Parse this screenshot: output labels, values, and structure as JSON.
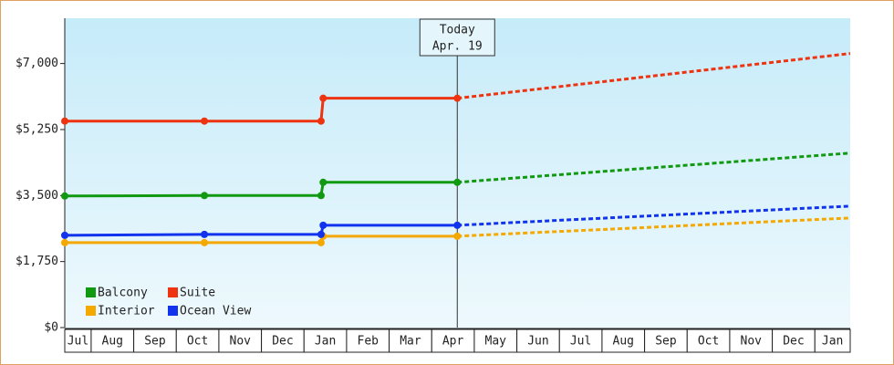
{
  "chart_data": {
    "type": "line",
    "ylim": [
      0,
      8200
    ],
    "yticks": [
      {
        "value": 0,
        "label": "$0"
      },
      {
        "value": 1750,
        "label": "$1,750"
      },
      {
        "value": 3500,
        "label": "$3,500"
      },
      {
        "value": 5250,
        "label": "$5,250"
      },
      {
        "value": 7000,
        "label": "$7,000"
      }
    ],
    "xlim": [
      0.38,
      18.83
    ],
    "categories": [
      "Jul",
      "Aug",
      "Sep",
      "Oct",
      "Nov",
      "Dec",
      "Jan",
      "Feb",
      "Mar",
      "Apr",
      "May",
      "Jun",
      "Jul",
      "Aug",
      "Sep",
      "Oct",
      "Nov",
      "Dec",
      "Jan"
    ],
    "today": {
      "x": 9.6,
      "label": [
        "Today",
        "Apr. 19"
      ]
    },
    "x": [
      0.38,
      3.66,
      6.4,
      6.45,
      9.6,
      18.83
    ],
    "series": [
      {
        "name": "Balcony",
        "color": "#119911",
        "values": [
          3488,
          3500,
          3500,
          3851,
          3851,
          4626
        ]
      },
      {
        "name": "Suite",
        "color": "#ee3311",
        "values": [
          5474,
          5474,
          5474,
          6079,
          6079,
          7266
        ]
      },
      {
        "name": "Interior",
        "color": "#f5a800",
        "values": [
          2252,
          2252,
          2252,
          2422,
          2422,
          2906
        ]
      },
      {
        "name": "Ocean View",
        "color": "#1133ee",
        "values": [
          2446,
          2470,
          2470,
          2712,
          2712,
          3221
        ]
      }
    ],
    "legend": "bottom-left"
  }
}
